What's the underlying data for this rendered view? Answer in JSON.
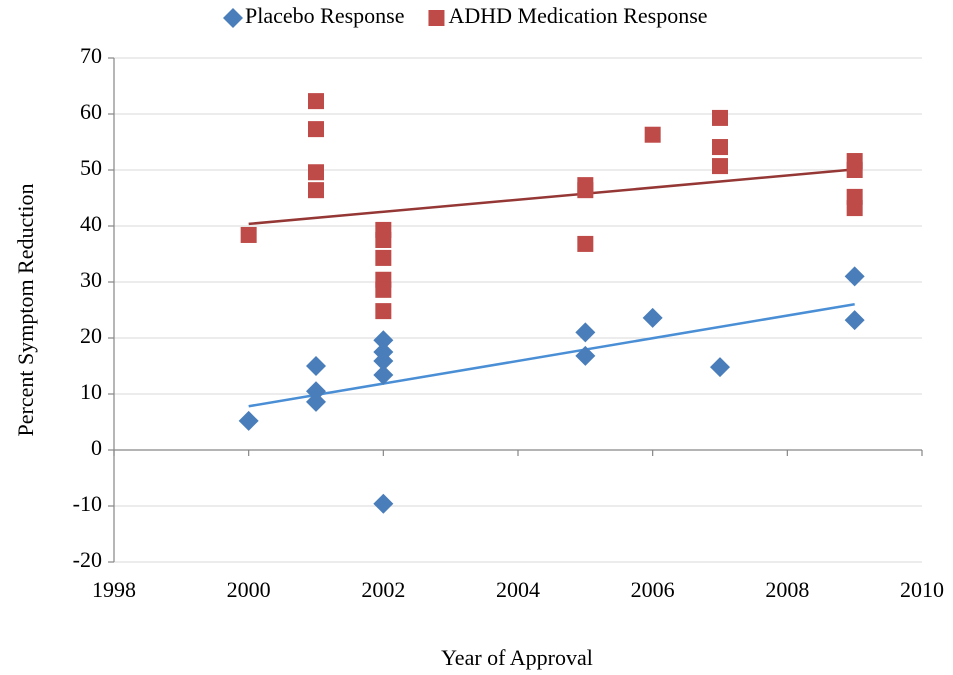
{
  "chart_data": {
    "type": "scatter",
    "x_label": "Year of Approval",
    "y_label": "Percent Symptom Reduction",
    "xlim": [
      1998,
      2010
    ],
    "xticks": [
      1998,
      2000,
      2002,
      2004,
      2006,
      2008,
      2010
    ],
    "ylim": [
      -20,
      70
    ],
    "yticks": [
      -20,
      -10,
      0,
      10,
      20,
      30,
      40,
      50,
      60,
      70
    ],
    "grid": true,
    "trendlines": true,
    "legend": "top",
    "series": [
      {
        "name": "Placebo Response",
        "color": "#4a7ebb",
        "trendline_color": "#4a8fd6",
        "marker": "diamond",
        "x": [
          2000,
          2001,
          2001,
          2001,
          2002,
          2002,
          2002,
          2002,
          2002,
          2005,
          2005,
          2006,
          2007,
          2009,
          2009
        ],
        "values": [
          5.2,
          15,
          10.5,
          8.6,
          19.6,
          17.5,
          15.9,
          13.4,
          -9.6,
          21,
          16.8,
          23.6,
          14.8,
          31,
          23.2
        ]
      },
      {
        "name": "ADHD Medication Response",
        "color": "#be4b48",
        "trendline_color": "#953735",
        "marker": "square",
        "x": [
          2000,
          2001,
          2001,
          2001,
          2001,
          2002,
          2002,
          2002,
          2002,
          2002,
          2002,
          2005,
          2005,
          2005,
          2006,
          2007,
          2007,
          2007,
          2009,
          2009,
          2009,
          2009
        ],
        "values": [
          38.4,
          62.3,
          57.3,
          49.6,
          46.4,
          39.3,
          37.5,
          34.3,
          30.4,
          28.6,
          24.8,
          47.3,
          46.4,
          36.8,
          56.3,
          59.3,
          54.1,
          50.7,
          51.6,
          50,
          45.2,
          43.2
        ]
      }
    ]
  }
}
